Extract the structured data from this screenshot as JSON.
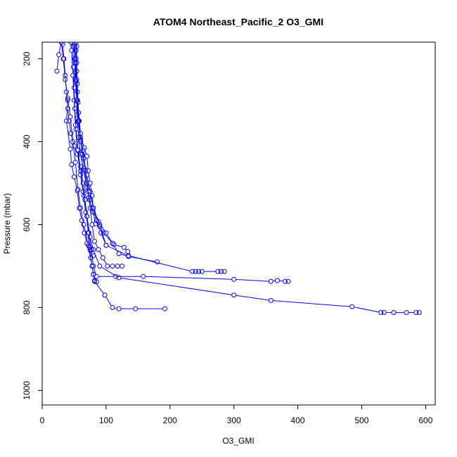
{
  "chart_data": {
    "type": "line",
    "title": "ATOM4 Northeast_Pacific_2 O3_GMI",
    "xlabel": "O3_GMI",
    "ylabel": "Pressure (mbar)",
    "xlim": [
      0,
      615
    ],
    "ylim": [
      1035,
      160
    ],
    "y_reversed": true,
    "x_ticks": [
      0,
      100,
      200,
      300,
      400,
      500,
      600
    ],
    "y_ticks": [
      200,
      400,
      600,
      800,
      1000
    ],
    "series_color": "#0000ff",
    "marker": "open-circle",
    "grid": false,
    "legend": "none",
    "series": [
      {
        "values": [
          [
            192,
            803
          ],
          [
            146,
            803
          ],
          [
            120,
            803
          ],
          [
            110,
            800
          ],
          [
            98,
            770
          ],
          [
            82,
            737
          ],
          [
            78,
            700
          ],
          [
            72,
            650
          ],
          [
            65,
            600
          ],
          [
            60,
            560
          ],
          [
            56,
            515
          ],
          [
            52,
            450
          ],
          [
            48,
            400
          ],
          [
            44,
            340
          ],
          [
            40,
            295
          ],
          [
            36,
            250
          ],
          [
            33,
            200
          ],
          [
            30,
            160
          ]
        ]
      },
      {
        "values": [
          [
            590,
            812
          ],
          [
            585,
            812
          ],
          [
            570,
            812
          ],
          [
            550,
            812
          ],
          [
            535,
            812
          ],
          [
            530,
            812
          ],
          [
            485,
            798
          ],
          [
            358,
            783
          ],
          [
            300,
            770
          ],
          [
            120,
            728
          ],
          [
            90,
            700
          ],
          [
            80,
            660
          ],
          [
            75,
            630
          ],
          [
            70,
            580
          ],
          [
            65,
            530
          ],
          [
            60,
            480
          ],
          [
            55,
            420
          ],
          [
            52,
            360
          ],
          [
            50,
            300
          ],
          [
            48,
            240
          ],
          [
            46,
            180
          ],
          [
            45,
            160
          ]
        ]
      },
      {
        "values": [
          [
            385,
            737
          ],
          [
            380,
            737
          ],
          [
            368,
            735
          ],
          [
            358,
            737
          ],
          [
            300,
            732
          ],
          [
            158,
            725
          ],
          [
            115,
            725
          ],
          [
            85,
            725
          ],
          [
            80,
            700
          ],
          [
            77,
            660
          ],
          [
            73,
            620
          ],
          [
            68,
            570
          ],
          [
            64,
            520
          ],
          [
            60,
            470
          ],
          [
            56,
            420
          ],
          [
            53,
            370
          ],
          [
            51,
            320
          ],
          [
            50,
            270
          ],
          [
            49,
            220
          ],
          [
            48,
            170
          ]
        ]
      },
      {
        "values": [
          [
            285,
            713
          ],
          [
            280,
            713
          ],
          [
            275,
            713
          ],
          [
            250,
            713
          ],
          [
            245,
            713
          ],
          [
            240,
            713
          ],
          [
            235,
            713
          ],
          [
            135,
            675
          ],
          [
            100,
            650
          ],
          [
            90,
            600
          ],
          [
            80,
            560
          ],
          [
            75,
            520
          ],
          [
            70,
            480
          ],
          [
            65,
            440
          ],
          [
            60,
            400
          ],
          [
            57,
            350
          ],
          [
            55,
            300
          ],
          [
            54,
            250
          ],
          [
            53,
            200
          ],
          [
            53,
            160
          ]
        ]
      },
      {
        "values": [
          [
            180,
            690
          ],
          [
            135,
            677
          ],
          [
            120,
            670
          ],
          [
            110,
            645
          ],
          [
            100,
            620
          ],
          [
            88,
            593
          ],
          [
            80,
            570
          ],
          [
            74,
            540
          ],
          [
            70,
            510
          ],
          [
            65,
            470
          ],
          [
            60,
            430
          ],
          [
            57,
            390
          ],
          [
            55,
            345
          ],
          [
            54,
            300
          ],
          [
            53,
            255
          ],
          [
            52,
            210
          ],
          [
            51,
            170
          ]
        ]
      },
      {
        "values": [
          [
            134,
            665
          ],
          [
            128,
            655
          ],
          [
            112,
            648
          ],
          [
            96,
            620
          ],
          [
            90,
            605
          ],
          [
            84,
            598
          ],
          [
            78,
            560
          ],
          [
            73,
            535
          ],
          [
            69,
            500
          ],
          [
            66,
            465
          ],
          [
            63,
            430
          ],
          [
            60,
            395
          ],
          [
            58,
            350
          ],
          [
            56,
            305
          ],
          [
            55,
            260
          ],
          [
            54,
            210
          ],
          [
            54,
            170
          ]
        ]
      },
      {
        "values": [
          [
            125,
            700
          ],
          [
            118,
            700
          ],
          [
            110,
            700
          ],
          [
            102,
            700
          ],
          [
            95,
            680
          ],
          [
            88,
            660
          ],
          [
            82,
            640
          ],
          [
            78,
            600
          ],
          [
            75,
            560
          ],
          [
            72,
            520
          ],
          [
            68,
            470
          ],
          [
            64,
            420
          ],
          [
            60,
            380
          ],
          [
            57,
            330
          ],
          [
            55,
            280
          ],
          [
            54,
            230
          ],
          [
            53,
            180
          ]
        ]
      },
      {
        "values": [
          [
            100,
            650
          ],
          [
            92,
            620
          ],
          [
            85,
            590
          ],
          [
            80,
            560
          ],
          [
            78,
            530
          ],
          [
            75,
            500
          ],
          [
            72,
            470
          ],
          [
            70,
            435
          ],
          [
            66,
            415
          ],
          [
            60,
            390
          ],
          [
            56,
            350
          ],
          [
            54,
            300
          ],
          [
            52,
            250
          ],
          [
            51,
            200
          ],
          [
            50,
            165
          ]
        ]
      },
      {
        "values": [
          [
            85,
            738
          ],
          [
            82,
            735
          ],
          [
            80,
            720
          ],
          [
            78,
            700
          ],
          [
            76,
            680
          ],
          [
            74,
            655
          ],
          [
            72,
            620
          ],
          [
            70,
            580
          ],
          [
            67,
            540
          ],
          [
            64,
            500
          ],
          [
            60,
            460
          ],
          [
            55,
            430
          ],
          [
            50,
            410
          ],
          [
            45,
            380
          ],
          [
            42,
            350
          ],
          [
            40,
            320
          ],
          [
            38,
            280
          ],
          [
            36,
            240
          ],
          [
            34,
            200
          ],
          [
            32,
            165
          ]
        ]
      },
      {
        "values": [
          [
            23,
            230
          ],
          [
            26,
            190
          ],
          [
            30,
            160
          ]
        ]
      },
      {
        "values": [
          [
            40,
            300
          ],
          [
            38,
            350
          ],
          [
            44,
            418
          ],
          [
            46,
            455
          ],
          [
            50,
            485
          ],
          [
            55,
            518
          ],
          [
            58,
            560
          ],
          [
            62,
            590
          ],
          [
            66,
            620
          ],
          [
            70,
            645
          ],
          [
            75,
            662
          ],
          [
            80,
            675
          ]
        ]
      }
    ]
  }
}
